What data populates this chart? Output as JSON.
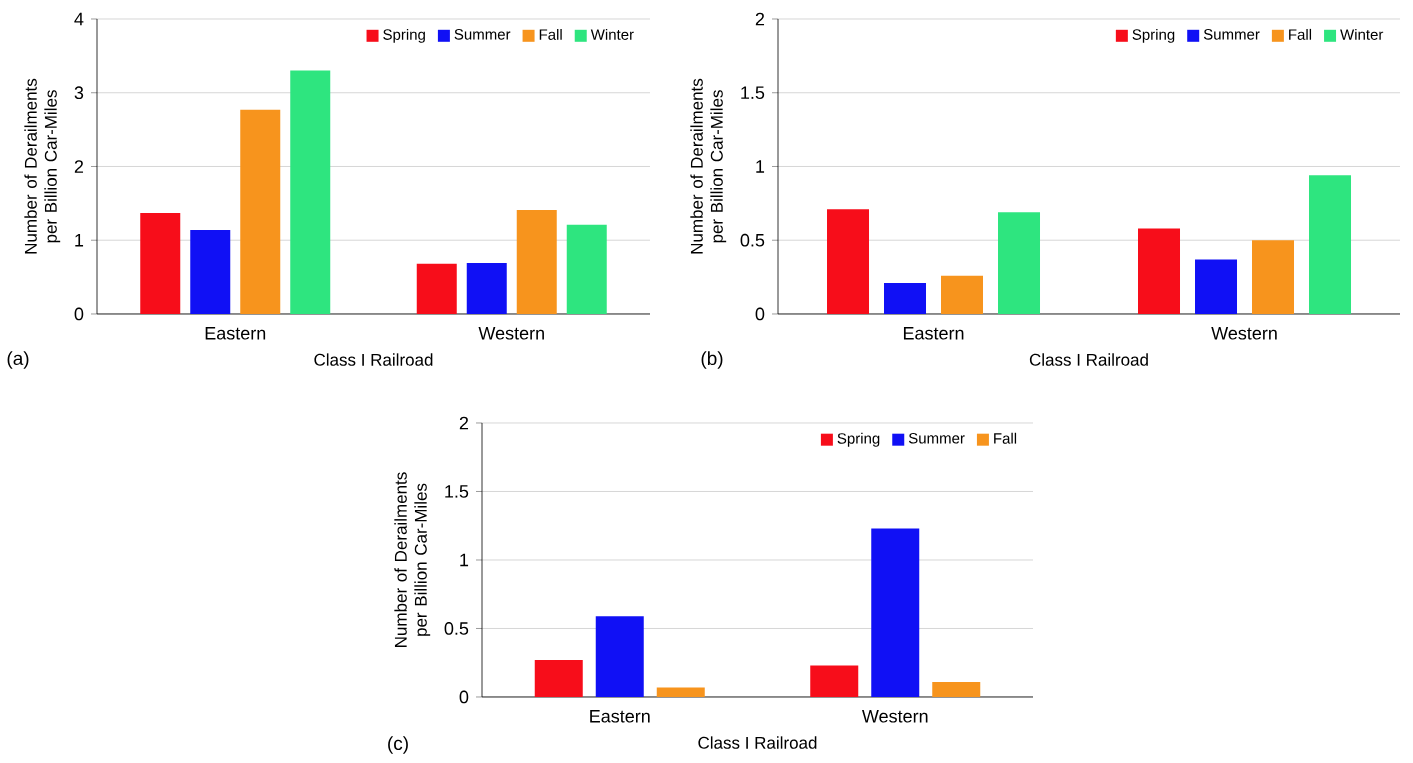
{
  "chart_data": [
    {
      "type": "bar",
      "xlabel": "Class I Railroad",
      "ylabel": "Number of Derailments per Billion Car-Miles",
      "annotations": [
        "(a)"
      ],
      "categories": [
        "Eastern",
        "Western"
      ],
      "series": [
        {
          "name": "Spring",
          "color": "#f70d1a",
          "values": [
            1.37,
            0.68
          ]
        },
        {
          "name": "Summer",
          "color": "#1010f5",
          "values": [
            1.14,
            0.69
          ]
        },
        {
          "name": "Fall",
          "color": "#f7941d",
          "values": [
            2.77,
            1.41
          ]
        },
        {
          "name": "Winter",
          "color": "#2ee57f",
          "values": [
            3.3,
            1.21
          ]
        }
      ],
      "ylim": [
        0,
        4
      ],
      "yticks": [
        0,
        1,
        2,
        3,
        4
      ],
      "grid": "y",
      "legend": "top right"
    },
    {
      "type": "bar",
      "xlabel": "Class I Railroad",
      "ylabel": "Number of Derailments per Billion Car-Miles",
      "annotations": [
        "(b)"
      ],
      "categories": [
        "Eastern",
        "Western"
      ],
      "series": [
        {
          "name": "Spring",
          "color": "#f70d1a",
          "values": [
            0.71,
            0.58
          ]
        },
        {
          "name": "Summer",
          "color": "#1010f5",
          "values": [
            0.21,
            0.37
          ]
        },
        {
          "name": "Fall",
          "color": "#f7941d",
          "values": [
            0.26,
            0.5
          ]
        },
        {
          "name": "Winter",
          "color": "#2ee57f",
          "values": [
            0.69,
            0.94
          ]
        }
      ],
      "ylim": [
        0,
        2
      ],
      "yticks": [
        0,
        0.5,
        1,
        1.5,
        2
      ],
      "grid": "y",
      "legend": "top right"
    },
    {
      "type": "bar",
      "xlabel": "Class I Railroad",
      "ylabel": "Number of Derailments per Billion Car-Miles",
      "annotations": [
        "(c)"
      ],
      "categories": [
        "Eastern",
        "Western"
      ],
      "series": [
        {
          "name": "Spring",
          "color": "#f70d1a",
          "values": [
            0.27,
            0.23
          ]
        },
        {
          "name": "Summer",
          "color": "#1010f5",
          "values": [
            0.59,
            1.23
          ]
        },
        {
          "name": "Fall",
          "color": "#f7941d",
          "values": [
            0.07,
            0.11
          ]
        }
      ],
      "ylim": [
        0,
        2
      ],
      "yticks": [
        0,
        0.5,
        1,
        1.5,
        2
      ],
      "grid": "y",
      "legend": "top right"
    }
  ]
}
